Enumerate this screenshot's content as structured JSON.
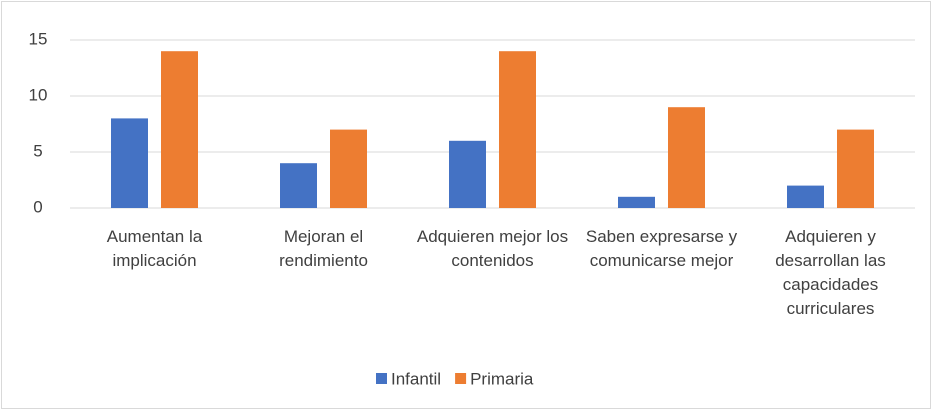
{
  "chart_data": {
    "type": "bar",
    "categories": [
      "Aumentan la implicación",
      "Mejoran el rendimiento",
      "Adquieren mejor los contenidos",
      "Saben expresarse y comunicarse mejor",
      "Adquieren y desarrollan las capacidades curriculares"
    ],
    "series": [
      {
        "name": "Infantil",
        "color": "#4472c4",
        "values": [
          8,
          4,
          6,
          1,
          2
        ]
      },
      {
        "name": "Primaria",
        "color": "#ed7d31",
        "values": [
          14,
          7,
          14,
          9,
          7
        ]
      }
    ],
    "ylim": [
      0,
      15
    ],
    "yticks": [
      0,
      5,
      10,
      15
    ],
    "grid": true,
    "legend": "bottom"
  }
}
